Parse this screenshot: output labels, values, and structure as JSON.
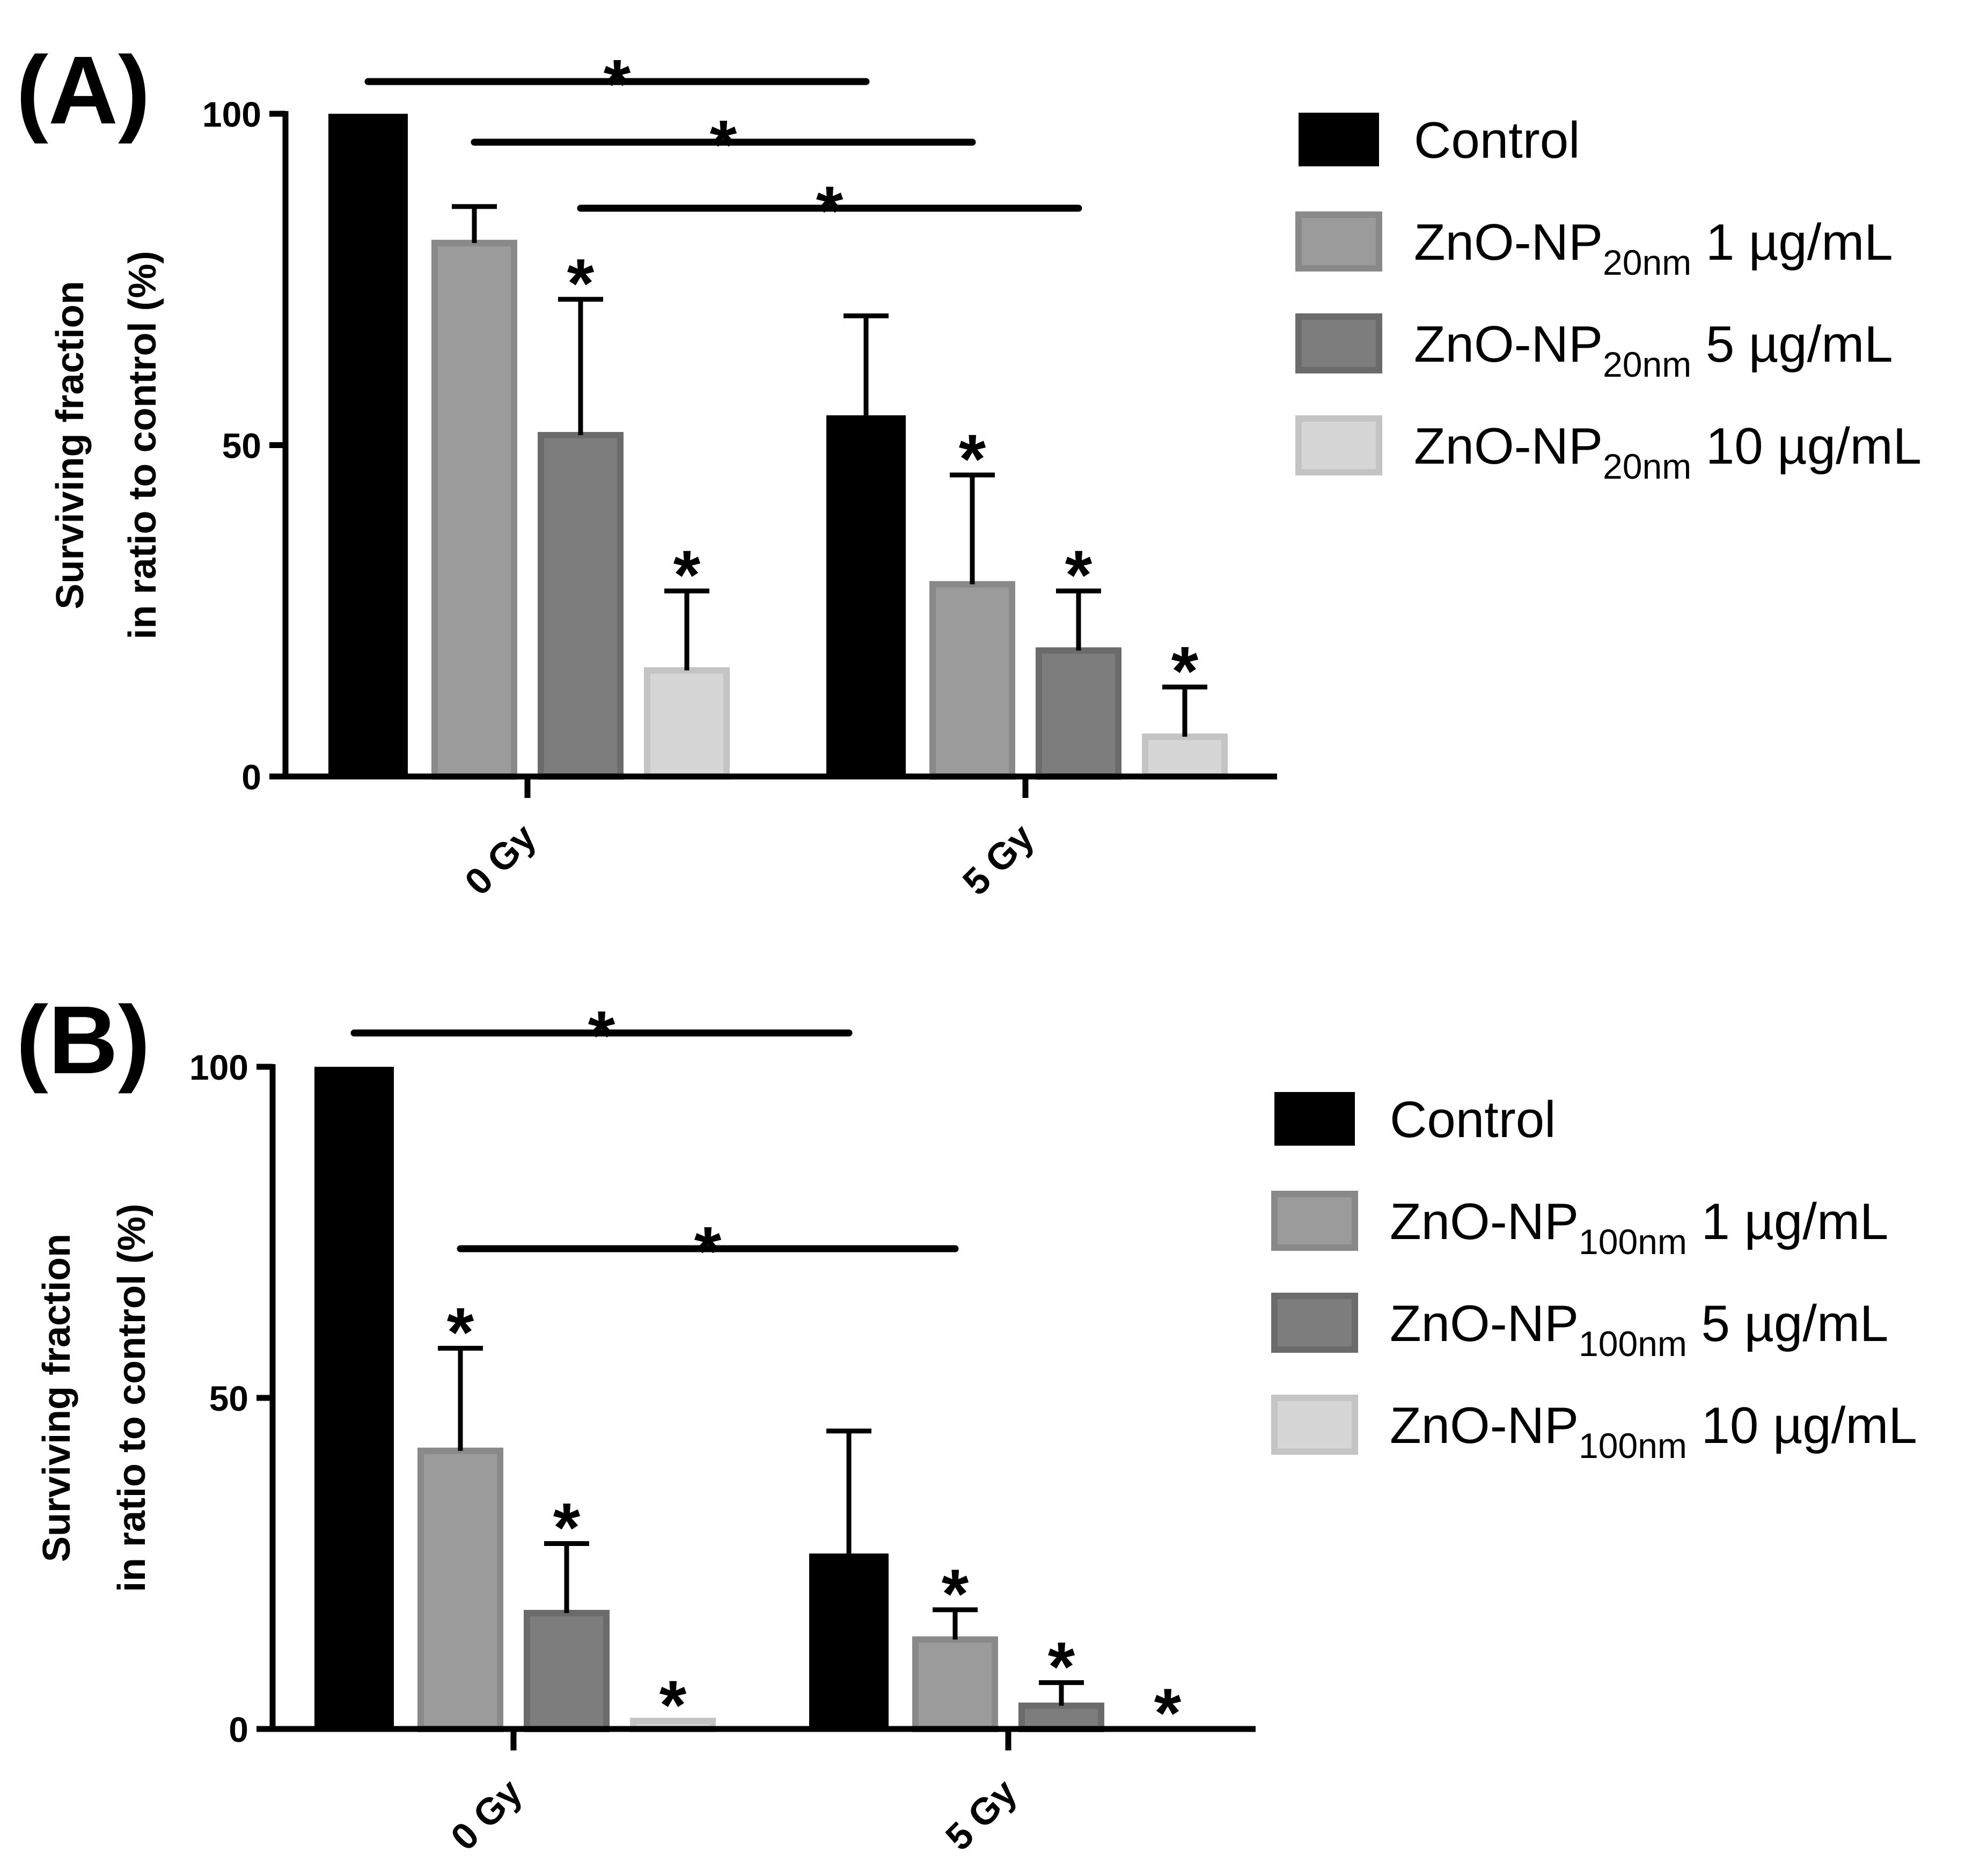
{
  "chart_data": [
    {
      "type": "bar",
      "panel_label": "(A)",
      "ylabel_line1": "Surviving fraction",
      "ylabel_line2": "in ratio to control (%)",
      "xlabel": "",
      "ylim": [
        0,
        100
      ],
      "yticks": [
        "0",
        "50",
        "100"
      ],
      "categories": [
        "0 Gy",
        "5 Gy"
      ],
      "legend_position": "right",
      "series": [
        {
          "name": "Control",
          "legend_prefix": "Control",
          "legend_sub": "",
          "legend_suffix": "",
          "color": "#000000",
          "values": [
            100,
            54.5
          ],
          "errors": [
            0,
            15
          ]
        },
        {
          "name": "ZnO-NP20nm 1 µg/mL",
          "legend_prefix": "ZnO-NP",
          "legend_sub": "20nm",
          "legend_suffix": " 1 µg/mL",
          "color": "#9b9b9b",
          "values": [
            80.5,
            29
          ],
          "errors": [
            5.5,
            16.5
          ]
        },
        {
          "name": "ZnO-NP20nm 5 µg/mL",
          "legend_prefix": "ZnO-NP",
          "legend_sub": "20nm",
          "legend_suffix": " 5 µg/mL",
          "color": "#7d7d7d",
          "values": [
            51.5,
            19
          ],
          "errors": [
            20.5,
            9
          ]
        },
        {
          "name": "ZnO-NP20nm 10 µg/mL",
          "legend_prefix": "ZnO-NP",
          "legend_sub": "20nm",
          "legend_suffix": " 10 µg/mL",
          "color": "#d6d6d6",
          "values": [
            16,
            6
          ],
          "errors": [
            12,
            7.5
          ]
        }
      ],
      "significance_bars": [
        {
          "from": [
            0,
            0
          ],
          "to": [
            1,
            0
          ],
          "label": "*"
        },
        {
          "from": [
            0,
            1
          ],
          "to": [
            1,
            1
          ],
          "label": "*"
        },
        {
          "from": [
            0,
            2
          ],
          "to": [
            1,
            2
          ],
          "label": "*"
        }
      ],
      "bar_stars": [
        {
          "group": 0,
          "series": 2,
          "label": "*"
        },
        {
          "group": 0,
          "series": 3,
          "label": "*"
        },
        {
          "group": 1,
          "series": 1,
          "label": "*"
        },
        {
          "group": 1,
          "series": 2,
          "label": "*"
        },
        {
          "group": 1,
          "series": 3,
          "label": "*"
        }
      ]
    },
    {
      "type": "bar",
      "panel_label": "(B)",
      "ylabel_line1": "Surviving fraction",
      "ylabel_line2": "in ratio to control (%)",
      "xlabel": "",
      "ylim": [
        0,
        100
      ],
      "yticks": [
        "0",
        "50",
        "100"
      ],
      "categories": [
        "0 Gy",
        "5 Gy"
      ],
      "legend_position": "right",
      "series": [
        {
          "name": "Control",
          "legend_prefix": "Control",
          "legend_sub": "",
          "legend_suffix": "",
          "color": "#000000",
          "values": [
            100,
            26.5
          ],
          "errors": [
            0,
            18.5
          ]
        },
        {
          "name": "ZnO-NP100nm 1 µg/mL",
          "legend_prefix": "ZnO-NP",
          "legend_sub": "100nm",
          "legend_suffix": " 1 µg/mL",
          "color": "#9b9b9b",
          "values": [
            42,
            13.5
          ],
          "errors": [
            15.5,
            4.5
          ]
        },
        {
          "name": "ZnO-NP100nm 5 µg/mL",
          "legend_prefix": "ZnO-NP",
          "legend_sub": "100nm",
          "legend_suffix": " 5 µg/mL",
          "color": "#7d7d7d",
          "values": [
            17.5,
            3.5
          ],
          "errors": [
            10.5,
            3.5
          ]
        },
        {
          "name": "ZnO-NP100nm 10 µg/mL",
          "legend_prefix": "ZnO-NP",
          "legend_sub": "100nm",
          "legend_suffix": " 10 µg/mL",
          "color": "#d6d6d6",
          "values": [
            1.2,
            0
          ],
          "errors": [
            0,
            0
          ]
        }
      ],
      "significance_bars": [
        {
          "from": [
            0,
            0
          ],
          "to": [
            1,
            0
          ],
          "label": "*"
        },
        {
          "from": [
            0,
            1
          ],
          "to": [
            1,
            1
          ],
          "label": "*"
        }
      ],
      "bar_stars": [
        {
          "group": 0,
          "series": 1,
          "label": "*"
        },
        {
          "group": 0,
          "series": 2,
          "label": "*"
        },
        {
          "group": 0,
          "series": 3,
          "label": "*"
        },
        {
          "group": 1,
          "series": 1,
          "label": "*"
        },
        {
          "group": 1,
          "series": 2,
          "label": "*"
        },
        {
          "group": 1,
          "series": 3,
          "label": "*"
        }
      ]
    }
  ]
}
